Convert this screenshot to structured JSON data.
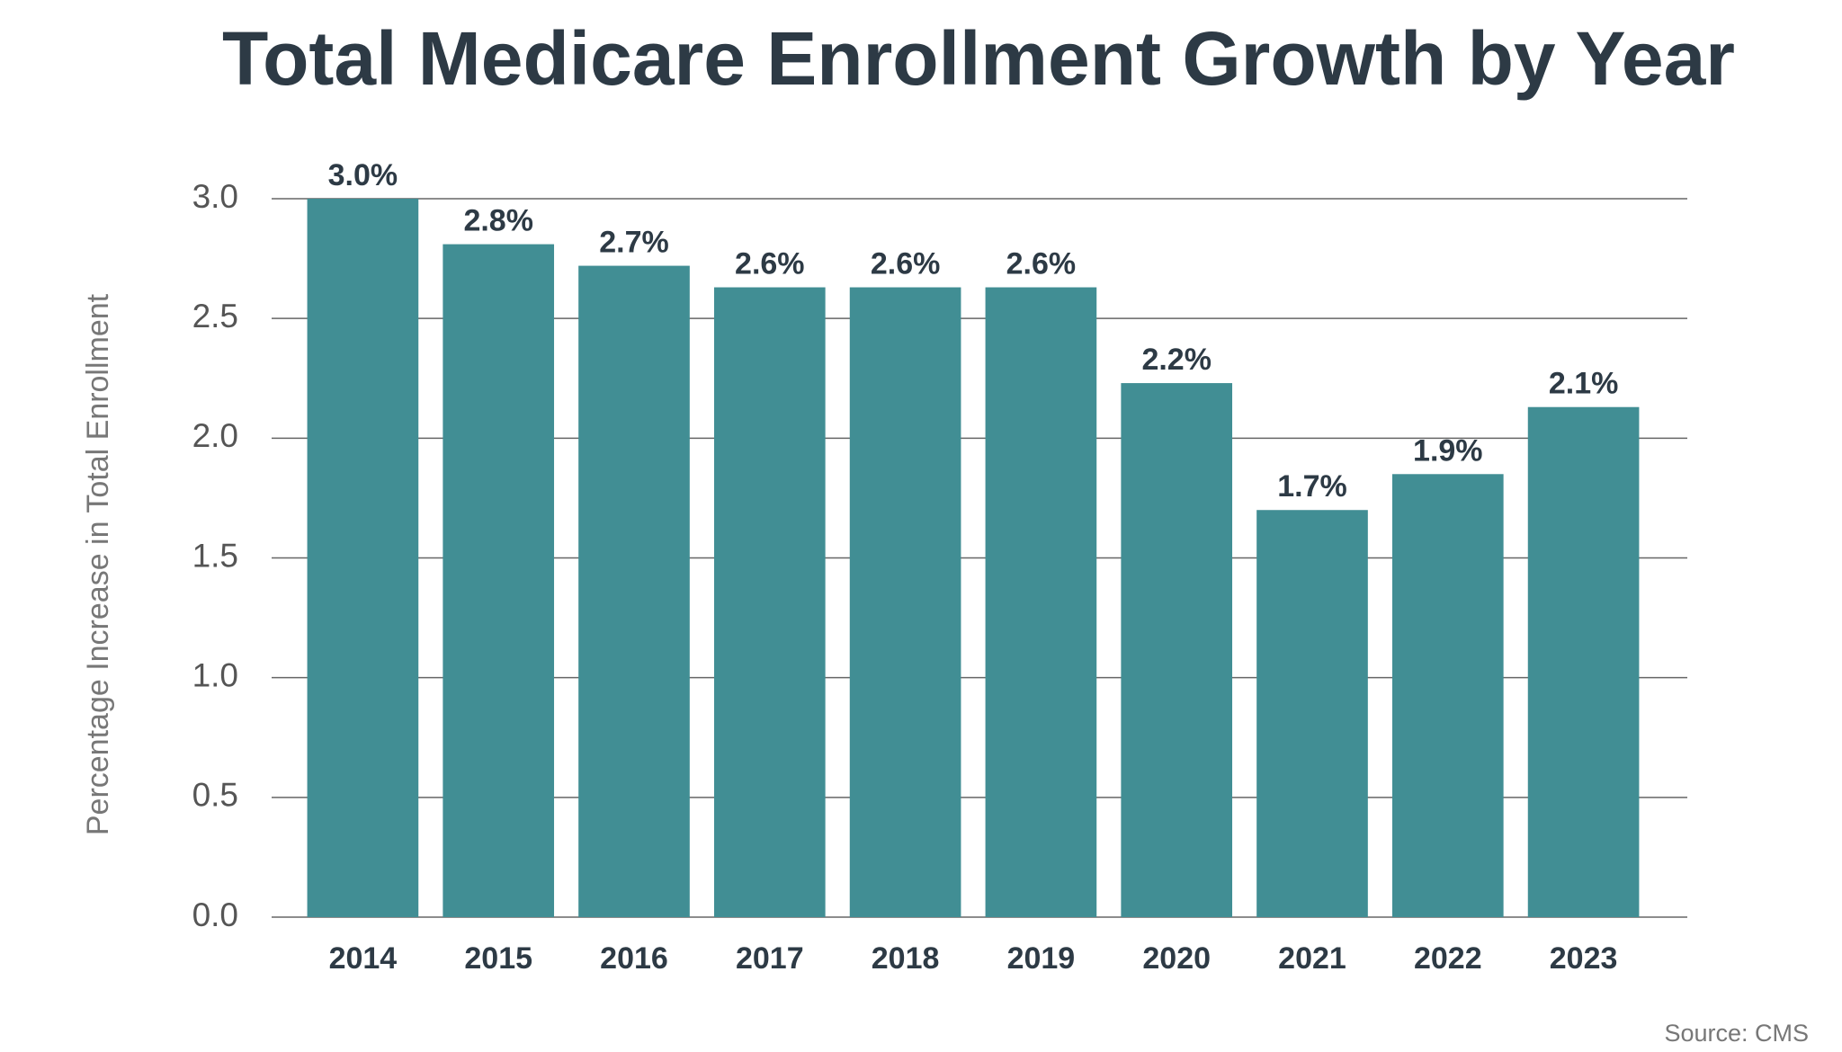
{
  "chart_data": {
    "type": "bar",
    "title": "Total Medicare Enrollment Growth by Year",
    "y_label": "Percentage Increase in Total Enrollment",
    "source": "Source: CMS",
    "categories": [
      "2014",
      "2015",
      "2016",
      "2017",
      "2018",
      "2019",
      "2020",
      "2021",
      "2022",
      "2023"
    ],
    "values": [
      3.0,
      2.81,
      2.72,
      2.63,
      2.63,
      2.63,
      2.23,
      1.7,
      1.85,
      2.13
    ],
    "value_labels": [
      "3.0%",
      "2.8%",
      "2.7%",
      "2.6%",
      "2.6%",
      "2.6%",
      "2.2%",
      "1.7%",
      "1.9%",
      "2.1%"
    ],
    "color": "#418e94",
    "ylim": [
      0,
      3.0
    ],
    "yticks": [
      {
        "value": 0,
        "label": "0.0"
      },
      0.5,
      {
        "value": 1,
        "label": "1.0"
      },
      1.5,
      {
        "value": 2,
        "label": "2.0"
      },
      2.5,
      {
        "value": 3,
        "label": "3.0"
      }
    ],
    "grid": true
  }
}
